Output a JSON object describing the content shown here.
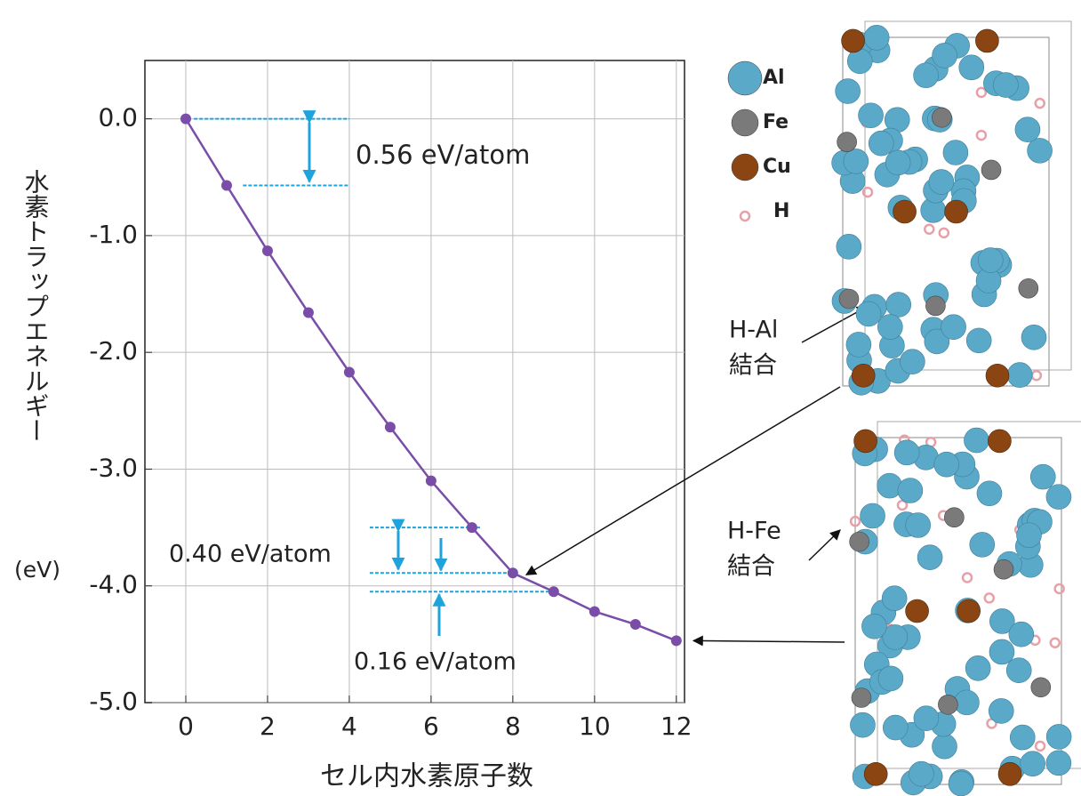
{
  "chart_data": {
    "type": "line",
    "xlabel": "セル内水素原子数",
    "ylabel": "水素トラップエネルギー",
    "ylabel_unit": "(eV)",
    "x": [
      0,
      1,
      2,
      3,
      4,
      5,
      6,
      7,
      8,
      9,
      10,
      11,
      12
    ],
    "series": [
      {
        "color": "#7a4ea8",
        "values": [
          0,
          -0.57,
          -1.13,
          -1.66,
          -2.17,
          -2.64,
          -3.1,
          -3.5,
          -3.89,
          -4.05,
          -4.22,
          -4.33,
          -4.47
        ]
      }
    ],
    "xlim": [
      -1,
      12.2
    ],
    "ylim": [
      -5,
      0.5
    ],
    "xticks": [
      0,
      2,
      4,
      6,
      8,
      10,
      12
    ],
    "yticks": [
      {
        "value": 0,
        "label": "0.0"
      },
      {
        "value": -1,
        "label": "-1.0"
      },
      {
        "value": -2,
        "label": "-2.0"
      },
      {
        "value": -3,
        "label": "-3.0"
      },
      {
        "value": -4,
        "label": "-4.0"
      },
      {
        "value": -5,
        "label": "-5.0"
      }
    ],
    "grid": true,
    "annotations": [
      "0.56 eV/atom",
      "0.40 eV/atom",
      "0.16 eV/atom"
    ],
    "legend": [
      {
        "name": "Al",
        "color": "#5aa9c9"
      },
      {
        "name": "Fe",
        "color": "#7a7a7a"
      },
      {
        "name": "Cu",
        "color": "#8b4513"
      },
      {
        "name": "H",
        "color": "#e8a0a8"
      }
    ],
    "bond_labels": [
      [
        "H-Al",
        "結合"
      ],
      [
        "H-Fe",
        "結合"
      ]
    ]
  }
}
